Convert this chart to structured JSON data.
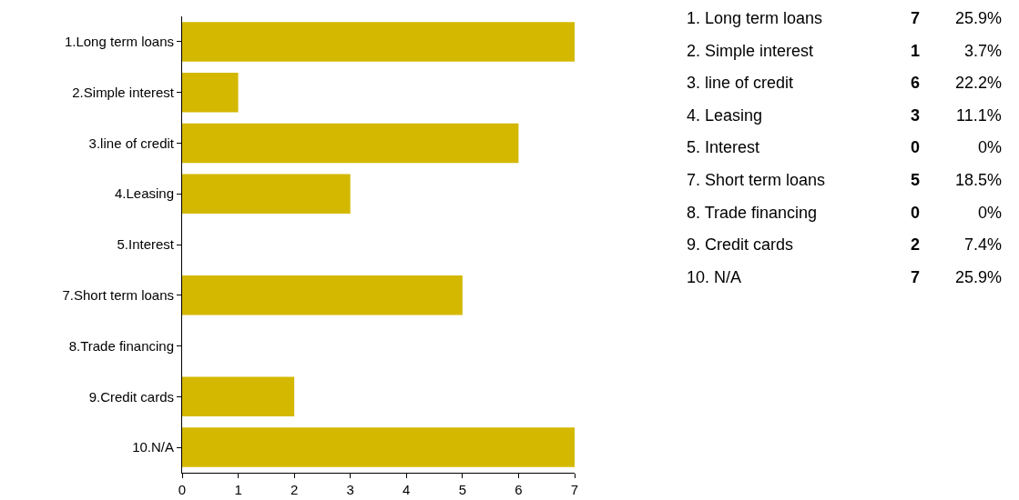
{
  "chart_data": {
    "type": "bar",
    "orientation": "horizontal",
    "categories": [
      "1.Long term loans",
      "2.Simple interest",
      "3.line of credit",
      "4.Leasing",
      "5.Interest",
      "7.Short term loans",
      "8.Trade financing",
      "9.Credit cards",
      "10.N/A"
    ],
    "values": [
      7,
      1,
      6,
      3,
      0,
      5,
      0,
      2,
      7
    ],
    "color": "#d4b800",
    "xlim": [
      0,
      7
    ],
    "xticks": [
      0,
      1,
      2,
      3,
      4,
      5,
      6,
      7
    ],
    "legend": false,
    "annotations": [
      "1. Long term loans",
      "7",
      "25.9%",
      "2. Simple interest",
      "1",
      "3.7%",
      "3. line of credit",
      "6",
      "22.2%",
      "4. Leasing",
      "3",
      "11.1%",
      "5. Interest",
      "0",
      "0%",
      "7. Short term loans",
      "5",
      "18.5%",
      "8. Trade financing",
      "0",
      "0%",
      "9. Credit cards",
      "2",
      "7.4%",
      "10. N/A",
      "7",
      "25.9%"
    ]
  }
}
